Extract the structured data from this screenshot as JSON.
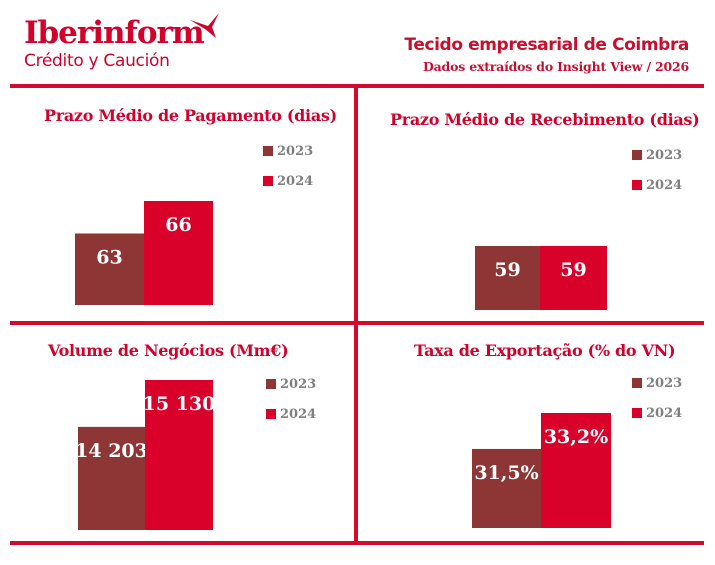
{
  "logo": {
    "name": "Iberinform",
    "tagline": "Crédito y Caución"
  },
  "header": {
    "title": "Tecido empresarial de Coimbra",
    "subtitle": "Dados extraídos do Insight View / 2026"
  },
  "colors": {
    "brand": "#d4002a",
    "series_2023": "#8e3535",
    "series_2024": "#d9002a",
    "legend_text": "#7f7f7f"
  },
  "legend": [
    "2023",
    "2024"
  ],
  "chart_data": [
    {
      "type": "bar",
      "title": "Prazo Médio de Pagamento (dias)",
      "categories": [
        "2023",
        "2024"
      ],
      "values": [
        63,
        66
      ],
      "labels": [
        "63",
        "66"
      ],
      "xlabel": "",
      "ylabel": "",
      "legend_position": "top-right",
      "grid": false
    },
    {
      "type": "bar",
      "title": "Prazo Médio de Recebimento (dias)",
      "categories": [
        "2023",
        "2024"
      ],
      "values": [
        59,
        59
      ],
      "labels": [
        "59",
        "59"
      ],
      "xlabel": "",
      "ylabel": "",
      "legend_position": "top-right",
      "grid": false
    },
    {
      "type": "bar",
      "title": "Volume de Negócios (Mm€)",
      "categories": [
        "2023",
        "2024"
      ],
      "values": [
        14203,
        15130
      ],
      "labels": [
        "14 203",
        "15 130"
      ],
      "xlabel": "",
      "ylabel": "",
      "legend_position": "top-right",
      "grid": false
    },
    {
      "type": "bar",
      "title": "Taxa de Exportação (% do VN)",
      "categories": [
        "2023",
        "2024"
      ],
      "values": [
        31.5,
        33.2
      ],
      "labels": [
        "31,5%",
        "33,2%"
      ],
      "xlabel": "",
      "ylabel": "",
      "legend_position": "top-right",
      "grid": false
    }
  ]
}
